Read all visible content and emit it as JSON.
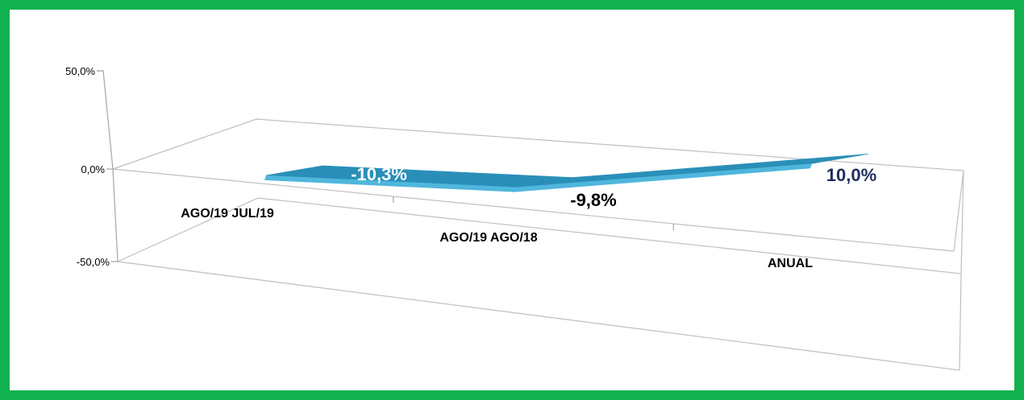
{
  "colors": {
    "frame_border": "#11b24f",
    "ribbon_top": "#2a8fb8",
    "ribbon_front": "#4fb6dc",
    "label_light": "#ffffff",
    "label_dark": "#1f2d5c",
    "label_black": "#000000"
  },
  "chart_data": {
    "type": "line",
    "style": "3d-ribbon",
    "categories": [
      "AGO/19 JUL/19",
      "AGO/19 AGO/18",
      "ANUAL"
    ],
    "series": [
      {
        "values": [
          -10.3,
          -9.8,
          10.0
        ],
        "data_labels": [
          "-10,3%",
          "-9,8%",
          "10,0%"
        ]
      }
    ],
    "y_ticks": [
      50,
      0,
      -50
    ],
    "y_tick_labels": [
      "50,0%",
      "0,0%",
      "-50,0%"
    ],
    "ylim": [
      -50,
      50
    ],
    "grid": true,
    "legend": "none"
  }
}
